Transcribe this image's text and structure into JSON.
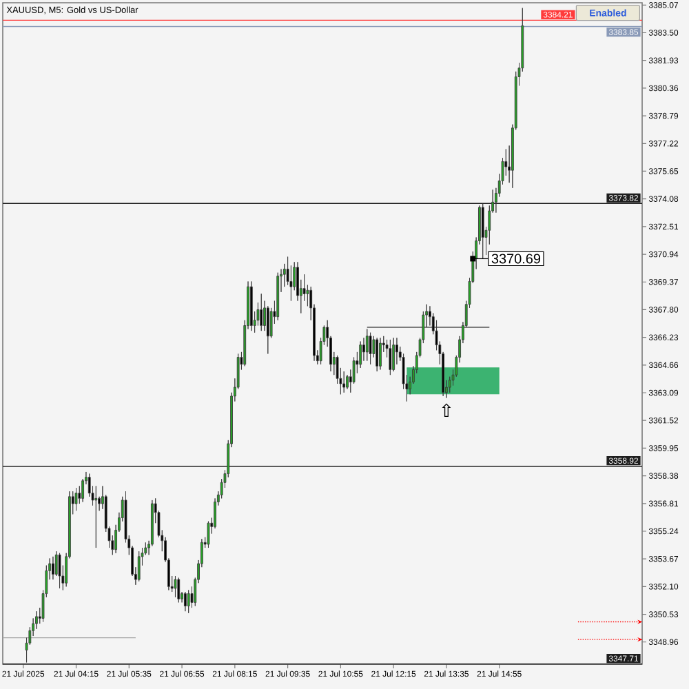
{
  "chart_data": {
    "type": "candlestick",
    "title": "XAUUSD, M5: Gold vs US-Dollar",
    "x": [
      "2025-07-21T03:00",
      "2025-07-21T03:05",
      "2025-07-21T03:10",
      "2025-07-21T03:15",
      "2025-07-21T03:20",
      "2025-07-21T03:25",
      "2025-07-21T03:30",
      "2025-07-21T03:35",
      "2025-07-21T03:40",
      "2025-07-21T03:45",
      "2025-07-21T03:50",
      "2025-07-21T03:55",
      "2025-07-21T04:00",
      "2025-07-21T04:05",
      "2025-07-21T04:10",
      "2025-07-21T04:15",
      "2025-07-21T04:20",
      "2025-07-21T04:25",
      "2025-07-21T04:30",
      "2025-07-21T04:35",
      "2025-07-21T04:40",
      "2025-07-21T04:45",
      "2025-07-21T04:50",
      "2025-07-21T04:55",
      "2025-07-21T05:00",
      "2025-07-21T05:05",
      "2025-07-21T05:10",
      "2025-07-21T05:15",
      "2025-07-21T05:20",
      "2025-07-21T05:25",
      "2025-07-21T05:30",
      "2025-07-21T05:35",
      "2025-07-21T05:40",
      "2025-07-21T05:45",
      "2025-07-21T05:50",
      "2025-07-21T05:55",
      "2025-07-21T06:00",
      "2025-07-21T06:05",
      "2025-07-21T06:10",
      "2025-07-21T06:15",
      "2025-07-21T06:20",
      "2025-07-21T06:25",
      "2025-07-21T06:30",
      "2025-07-21T06:35",
      "2025-07-21T06:40",
      "2025-07-21T06:45",
      "2025-07-21T06:50",
      "2025-07-21T06:55",
      "2025-07-21T07:00",
      "2025-07-21T07:05",
      "2025-07-21T07:10",
      "2025-07-21T07:15",
      "2025-07-21T07:20",
      "2025-07-21T07:25",
      "2025-07-21T07:30",
      "2025-07-21T07:35",
      "2025-07-21T07:40",
      "2025-07-21T07:45",
      "2025-07-21T07:50",
      "2025-07-21T07:55",
      "2025-07-21T08:00",
      "2025-07-21T08:05",
      "2025-07-21T08:10",
      "2025-07-21T08:15",
      "2025-07-21T08:20",
      "2025-07-21T08:25",
      "2025-07-21T08:30",
      "2025-07-21T08:35",
      "2025-07-21T08:40",
      "2025-07-21T08:45",
      "2025-07-21T08:50",
      "2025-07-21T08:55",
      "2025-07-21T09:00",
      "2025-07-21T09:05",
      "2025-07-21T09:10",
      "2025-07-21T09:15",
      "2025-07-21T09:20",
      "2025-07-21T09:25",
      "2025-07-21T09:30",
      "2025-07-21T09:35",
      "2025-07-21T09:40",
      "2025-07-21T09:45",
      "2025-07-21T09:50",
      "2025-07-21T09:55",
      "2025-07-21T10:00",
      "2025-07-21T10:05",
      "2025-07-21T10:10",
      "2025-07-21T10:15",
      "2025-07-21T10:20",
      "2025-07-21T10:25",
      "2025-07-21T10:30",
      "2025-07-21T10:35",
      "2025-07-21T10:40",
      "2025-07-21T10:45",
      "2025-07-21T10:50",
      "2025-07-21T10:55",
      "2025-07-21T11:00",
      "2025-07-21T11:05",
      "2025-07-21T11:10",
      "2025-07-21T11:15",
      "2025-07-21T11:20",
      "2025-07-21T11:25",
      "2025-07-21T11:30",
      "2025-07-21T11:35",
      "2025-07-21T11:40",
      "2025-07-21T11:45",
      "2025-07-21T11:50",
      "2025-07-21T11:55",
      "2025-07-21T12:00",
      "2025-07-21T12:05",
      "2025-07-21T12:10",
      "2025-07-21T12:15",
      "2025-07-21T12:20",
      "2025-07-21T12:25",
      "2025-07-21T12:30",
      "2025-07-21T12:35",
      "2025-07-21T12:40",
      "2025-07-21T12:45",
      "2025-07-21T12:50",
      "2025-07-21T12:55",
      "2025-07-21T13:00",
      "2025-07-21T13:05",
      "2025-07-21T13:10",
      "2025-07-21T13:15",
      "2025-07-21T13:20",
      "2025-07-21T13:25",
      "2025-07-21T13:30",
      "2025-07-21T13:35",
      "2025-07-21T13:40",
      "2025-07-21T13:45",
      "2025-07-21T13:50",
      "2025-07-21T13:55",
      "2025-07-21T14:00",
      "2025-07-21T14:05",
      "2025-07-21T14:10",
      "2025-07-21T14:15",
      "2025-07-21T14:20",
      "2025-07-21T14:25",
      "2025-07-21T14:30",
      "2025-07-21T14:35",
      "2025-07-21T14:40",
      "2025-07-21T14:45",
      "2025-07-21T14:50",
      "2025-07-21T14:55",
      "2025-07-21T15:00",
      "2025-07-21T15:05",
      "2025-07-21T15:10",
      "2025-07-21T15:15",
      "2025-07-21T15:20",
      "2025-07-21T15:25",
      "2025-07-21T15:30"
    ],
    "ohlc": [
      [
        3348.5,
        3349.2,
        3347.8,
        3348.9
      ],
      [
        3348.9,
        3349.8,
        3348.8,
        3349.6
      ],
      [
        3349.6,
        3350.3,
        3349.3,
        3350.0
      ],
      [
        3350.0,
        3350.7,
        3349.7,
        3350.4
      ],
      [
        3350.4,
        3350.9,
        3350.0,
        3350.3
      ],
      [
        3350.3,
        3351.9,
        3350.1,
        3351.7
      ],
      [
        3351.7,
        3353.3,
        3351.5,
        3353.0
      ],
      [
        3353.0,
        3353.7,
        3352.5,
        3353.4
      ],
      [
        3353.4,
        3353.8,
        3352.5,
        3352.8
      ],
      [
        3352.8,
        3354.1,
        3352.7,
        3353.9
      ],
      [
        3353.9,
        3354.0,
        3352.0,
        3352.7
      ],
      [
        3352.7,
        3353.3,
        3351.9,
        3352.3
      ],
      [
        3352.3,
        3354.0,
        3352.1,
        3353.8
      ],
      [
        3353.8,
        3357.5,
        3353.7,
        3357.2
      ],
      [
        3357.2,
        3357.5,
        3356.2,
        3356.8
      ],
      [
        3356.8,
        3357.7,
        3356.4,
        3357.4
      ],
      [
        3357.4,
        3357.8,
        3356.8,
        3357.1
      ],
      [
        3357.1,
        3358.2,
        3356.9,
        3358.1
      ],
      [
        3358.1,
        3358.6,
        3357.9,
        3358.3
      ],
      [
        3358.3,
        3358.5,
        3357.2,
        3357.4
      ],
      [
        3357.4,
        3357.8,
        3356.7,
        3357.0
      ],
      [
        3357.0,
        3357.8,
        3354.3,
        3357.1
      ],
      [
        3357.1,
        3357.2,
        3356.4,
        3356.8
      ],
      [
        3356.8,
        3357.8,
        3356.5,
        3357.2
      ],
      [
        3357.2,
        3357.3,
        3355.2,
        3355.4
      ],
      [
        3355.4,
        3355.5,
        3354.3,
        3354.7
      ],
      [
        3354.7,
        3355.0,
        3353.9,
        3354.2
      ],
      [
        3354.2,
        3355.6,
        3354.0,
        3355.3
      ],
      [
        3355.3,
        3356.3,
        3355.2,
        3356.0
      ],
      [
        3356.0,
        3357.2,
        3355.8,
        3357.0
      ],
      [
        3357.0,
        3357.5,
        3354.6,
        3354.8
      ],
      [
        3354.8,
        3355.0,
        3353.9,
        3354.3
      ],
      [
        3354.3,
        3354.4,
        3352.7,
        3352.8
      ],
      [
        3352.8,
        3353.2,
        3352.2,
        3352.5
      ],
      [
        3352.5,
        3354.1,
        3352.4,
        3353.8
      ],
      [
        3353.8,
        3354.3,
        3353.3,
        3354.0
      ],
      [
        3354.0,
        3354.6,
        3353.9,
        3354.3
      ],
      [
        3354.3,
        3354.7,
        3353.9,
        3354.5
      ],
      [
        3354.5,
        3357.0,
        3354.4,
        3356.8
      ],
      [
        3356.8,
        3357.1,
        3355.7,
        3356.3
      ],
      [
        3356.3,
        3356.4,
        3354.9,
        3355.0
      ],
      [
        3355.0,
        3355.3,
        3354.1,
        3354.7
      ],
      [
        3354.7,
        3354.9,
        3353.5,
        3353.6
      ],
      [
        3353.6,
        3353.7,
        3351.9,
        3352.1
      ],
      [
        3352.1,
        3352.7,
        3351.8,
        3352.0
      ],
      [
        3352.0,
        3352.7,
        3351.5,
        3352.5
      ],
      [
        3352.5,
        3352.6,
        3351.2,
        3351.4
      ],
      [
        3351.4,
        3351.8,
        3351.2,
        3351.7
      ],
      [
        3351.7,
        3351.8,
        3350.7,
        3351.0
      ],
      [
        3351.0,
        3351.9,
        3350.6,
        3351.7
      ],
      [
        3351.7,
        3352.1,
        3350.9,
        3351.2
      ],
      [
        3351.2,
        3352.6,
        3351.0,
        3352.5
      ],
      [
        3352.5,
        3353.6,
        3352.3,
        3353.4
      ],
      [
        3353.4,
        3354.8,
        3353.2,
        3354.6
      ],
      [
        3354.6,
        3354.9,
        3354.3,
        3354.5
      ],
      [
        3354.5,
        3355.8,
        3354.3,
        3355.7
      ],
      [
        3355.7,
        3356.0,
        3355.1,
        3355.5
      ],
      [
        3355.5,
        3357.1,
        3355.4,
        3356.9
      ],
      [
        3356.9,
        3357.5,
        3356.7,
        3357.3
      ],
      [
        3357.3,
        3358.2,
        3357.1,
        3358.0
      ],
      [
        3358.0,
        3358.7,
        3357.7,
        3358.5
      ],
      [
        3358.5,
        3360.4,
        3358.3,
        3360.2
      ],
      [
        3360.2,
        3363.1,
        3360.0,
        3362.9
      ],
      [
        3362.9,
        3363.9,
        3362.6,
        3363.4
      ],
      [
        3363.4,
        3365.3,
        3363.3,
        3365.1
      ],
      [
        3365.1,
        3365.4,
        3364.4,
        3364.7
      ],
      [
        3364.7,
        3367.2,
        3364.6,
        3366.9
      ],
      [
        3366.9,
        3369.4,
        3366.7,
        3369.1
      ],
      [
        3369.1,
        3369.4,
        3366.6,
        3366.9
      ],
      [
        3366.9,
        3367.7,
        3366.5,
        3367.2
      ],
      [
        3367.2,
        3368.2,
        3366.9,
        3367.8
      ],
      [
        3367.8,
        3368.7,
        3366.6,
        3366.9
      ],
      [
        3366.9,
        3368.3,
        3366.6,
        3367.9
      ],
      [
        3367.9,
        3368.0,
        3365.3,
        3366.3
      ],
      [
        3366.3,
        3367.9,
        3366.2,
        3367.7
      ],
      [
        3367.7,
        3368.3,
        3367.0,
        3367.4
      ],
      [
        3367.4,
        3369.9,
        3367.2,
        3369.7
      ],
      [
        3369.7,
        3370.1,
        3368.8,
        3369.8
      ],
      [
        3369.8,
        3370.4,
        3369.1,
        3370.1
      ],
      [
        3370.1,
        3370.8,
        3369.2,
        3369.4
      ],
      [
        3369.4,
        3370.3,
        3368.3,
        3369.1
      ],
      [
        3369.1,
        3370.5,
        3368.9,
        3370.2
      ],
      [
        3370.2,
        3370.5,
        3368.3,
        3368.6
      ],
      [
        3368.6,
        3369.5,
        3367.6,
        3369.0
      ],
      [
        3369.0,
        3369.8,
        3368.3,
        3368.7
      ],
      [
        3368.7,
        3369.2,
        3368.0,
        3368.9
      ],
      [
        3368.9,
        3369.1,
        3367.2,
        3367.9
      ],
      [
        3367.9,
        3368.1,
        3364.9,
        3365.2
      ],
      [
        3365.2,
        3365.5,
        3364.7,
        3364.9
      ],
      [
        3364.9,
        3366.2,
        3364.7,
        3366.0
      ],
      [
        3366.0,
        3366.9,
        3365.8,
        3366.8
      ],
      [
        3366.8,
        3367.2,
        3365.7,
        3366.2
      ],
      [
        3366.2,
        3366.3,
        3364.3,
        3364.7
      ],
      [
        3364.7,
        3365.4,
        3364.1,
        3365.1
      ],
      [
        3365.1,
        3365.2,
        3363.6,
        3363.9
      ],
      [
        3363.9,
        3364.5,
        3363.0,
        3363.6
      ],
      [
        3363.6,
        3364.3,
        3363.1,
        3363.4
      ],
      [
        3363.4,
        3364.1,
        3363.3,
        3364.0
      ],
      [
        3364.0,
        3364.4,
        3363.1,
        3363.7
      ],
      [
        3363.7,
        3365.1,
        3363.6,
        3364.9
      ],
      [
        3364.9,
        3365.4,
        3364.2,
        3364.7
      ],
      [
        3364.7,
        3366.0,
        3364.5,
        3365.8
      ],
      [
        3365.8,
        3366.2,
        3364.9,
        3365.4
      ],
      [
        3365.4,
        3366.7,
        3364.9,
        3366.3
      ],
      [
        3366.3,
        3366.5,
        3364.7,
        3365.3
      ],
      [
        3365.3,
        3366.3,
        3365.1,
        3366.1
      ],
      [
        3366.1,
        3366.2,
        3364.3,
        3364.6
      ],
      [
        3364.6,
        3366.2,
        3364.4,
        3365.9
      ],
      [
        3365.9,
        3366.3,
        3365.4,
        3365.8
      ],
      [
        3365.8,
        3366.1,
        3365.1,
        3365.6
      ],
      [
        3365.6,
        3366.1,
        3364.1,
        3364.4
      ],
      [
        3364.4,
        3366.2,
        3364.3,
        3365.8
      ],
      [
        3365.8,
        3366.2,
        3364.7,
        3365.4
      ],
      [
        3365.4,
        3365.7,
        3364.9,
        3365.1
      ],
      [
        3365.1,
        3365.3,
        3363.3,
        3363.6
      ],
      [
        3363.6,
        3364.1,
        3362.6,
        3363.3
      ],
      [
        3363.3,
        3364.0,
        3363.0,
        3363.7
      ],
      [
        3363.7,
        3364.6,
        3363.6,
        3364.4
      ],
      [
        3364.4,
        3365.4,
        3364.2,
        3365.2
      ],
      [
        3365.2,
        3366.2,
        3365.1,
        3366.1
      ],
      [
        3366.1,
        3367.7,
        3365.9,
        3367.5
      ],
      [
        3367.5,
        3368.1,
        3366.8,
        3367.7
      ],
      [
        3367.7,
        3368.0,
        3366.9,
        3367.4
      ],
      [
        3367.4,
        3367.6,
        3366.4,
        3366.6
      ],
      [
        3366.6,
        3367.2,
        3365.5,
        3365.8
      ],
      [
        3365.8,
        3366.0,
        3364.7,
        3365.3
      ],
      [
        3365.3,
        3365.4,
        3362.9,
        3363.1
      ],
      [
        3363.1,
        3363.8,
        3362.8,
        3363.4
      ],
      [
        3363.4,
        3364.0,
        3363.1,
        3363.8
      ],
      [
        3363.8,
        3364.4,
        3363.5,
        3364.1
      ],
      [
        3364.1,
        3365.2,
        3364.0,
        3365.1
      ],
      [
        3365.1,
        3366.3,
        3364.8,
        3366.1
      ],
      [
        3366.1,
        3367.1,
        3365.9,
        3366.9
      ],
      [
        3366.9,
        3368.3,
        3366.8,
        3368.1
      ],
      [
        3368.1,
        3369.6,
        3367.9,
        3369.4
      ],
      [
        3369.4,
        3371.1,
        3369.3,
        3370.7
      ],
      [
        3370.7,
        3371.9,
        3370.1,
        3371.7
      ],
      [
        3371.7,
        3373.7,
        3371.5,
        3373.6
      ],
      [
        3373.6,
        3373.8,
        3370.7,
        3371.9
      ],
      [
        3371.9,
        3372.5,
        3370.9,
        3372.3
      ],
      [
        3372.3,
        3373.7,
        3371.5,
        3373.4
      ],
      [
        3373.4,
        3374.6,
        3373.3,
        3373.9
      ],
      [
        3373.9,
        3374.7,
        3373.3,
        3374.4
      ],
      [
        3374.4,
        3375.5,
        3374.2,
        3375.1
      ],
      [
        3375.1,
        3376.4,
        3374.9,
        3376.2
      ],
      [
        3376.2,
        3376.9,
        3375.4,
        3375.9
      ],
      [
        3375.9,
        3377.1,
        3375.0,
        3375.7
      ],
      [
        3375.7,
        3378.3,
        3374.7,
        3378.1
      ],
      [
        3378.1,
        3381.3,
        3378.0,
        3381.0
      ],
      [
        3381.0,
        3381.8,
        3380.5,
        3381.5
      ],
      [
        3381.5,
        3384.9,
        3381.3,
        3383.9
      ]
    ],
    "colors": [
      "#27a327",
      "#27a327",
      "#27a327",
      "#27a327",
      "#000000",
      "#27a327",
      "#27a327",
      "#27a327",
      "#000000",
      "#27a327",
      "#000000",
      "#000000",
      "#27a327",
      "#27a327",
      "#000000",
      "#27a327",
      "#000000",
      "#27a327",
      "#27a327",
      "#000000",
      "#000000",
      "#27a327",
      "#000000",
      "#27a327",
      "#000000",
      "#000000",
      "#000000",
      "#27a327",
      "#27a327",
      "#27a327",
      "#000000",
      "#000000",
      "#000000",
      "#000000",
      "#27a327",
      "#27a327",
      "#27a327",
      "#27a327",
      "#27a327",
      "#000000",
      "#000000",
      "#000000",
      "#000000",
      "#000000",
      "#000000",
      "#27a327",
      "#000000",
      "#27a327",
      "#000000",
      "#27a327",
      "#000000",
      "#27a327",
      "#27a327",
      "#27a327",
      "#000000",
      "#27a327",
      "#000000",
      "#27a327",
      "#27a327",
      "#27a327",
      "#27a327",
      "#27a327",
      "#27a327",
      "#27a327",
      "#27a327",
      "#000000",
      "#27a327",
      "#27a327",
      "#000000",
      "#27a327",
      "#27a327",
      "#000000",
      "#27a327",
      "#000000",
      "#27a327",
      "#000000",
      "#27a327",
      "#27a327",
      "#27a327",
      "#000000",
      "#000000",
      "#27a327",
      "#000000",
      "#27a327",
      "#000000",
      "#27a327",
      "#000000",
      "#000000",
      "#000000",
      "#27a327",
      "#27a327",
      "#000000",
      "#000000",
      "#27a327",
      "#000000",
      "#000000",
      "#000000",
      "#27a327",
      "#000000",
      "#27a327",
      "#000000",
      "#27a327",
      "#000000",
      "#27a327",
      "#000000",
      "#27a327",
      "#000000",
      "#27a327",
      "#000000",
      "#000000",
      "#000000",
      "#27a327",
      "#000000",
      "#000000",
      "#000000",
      "#000000",
      "#27a327",
      "#27a327",
      "#27a327",
      "#27a327",
      "#27a327",
      "#27a327",
      "#000000",
      "#000000",
      "#000000",
      "#000000",
      "#000000",
      "#27a327",
      "#27a327",
      "#27a327",
      "#27a327",
      "#27a327",
      "#27a327",
      "#27a327",
      "#27a327",
      "#27a327",
      "#27a327",
      "#27a327",
      "#000000",
      "#27a327",
      "#27a327",
      "#27a327",
      "#27a327",
      "#27a327",
      "#27a327",
      "#000000",
      "#000000",
      "#27a327",
      "#27a327",
      "#27a327",
      "#27a327"
    ],
    "xlim": [
      "2025-07-21T02:24",
      "2025-07-21T18:31"
    ],
    "xticks": [
      {
        "value": "2025-07-21T02:55",
        "label": "21 Jul 2025"
      },
      {
        "value": "2025-07-21T04:15",
        "label": "21 Jul 04:15"
      },
      {
        "value": "2025-07-21T05:35",
        "label": "21 Jul 05:35"
      },
      {
        "value": "2025-07-21T06:55",
        "label": "21 Jul 06:55"
      },
      {
        "value": "2025-07-21T08:15",
        "label": "21 Jul 08:15"
      },
      {
        "value": "2025-07-21T09:35",
        "label": "21 Jul 09:35"
      },
      {
        "value": "2025-07-21T10:55",
        "label": "21 Jul 10:55"
      },
      {
        "value": "2025-07-21T12:15",
        "label": "21 Jul 12:15"
      },
      {
        "value": "2025-07-21T13:35",
        "label": "21 Jul 13:35"
      },
      {
        "value": "2025-07-21T14:55",
        "label": "21 Jul 14:55"
      }
    ],
    "ylim": [
      3347.7,
      3385.2
    ],
    "yticks": [
      3348.96,
      3350.53,
      {
        "value": 3352.1,
        "label": "3352.10"
      },
      3353.67,
      3355.24,
      3356.81,
      3358.38,
      3359.95,
      3361.52,
      3363.09,
      3364.66,
      3366.23,
      {
        "value": 3367.8,
        "label": "3367.80"
      },
      3369.37,
      3370.94,
      3372.51,
      3374.08,
      3375.65,
      3377.22,
      3378.79,
      3380.36,
      3381.93,
      {
        "value": 3383.5,
        "label": "3383.50"
      },
      3385.07
    ],
    "series": [
      {
        "type": "line",
        "x": [
          "2025-07-21T12:35",
          "2025-07-21T14:55"
        ],
        "values": [
          3364.5,
          3364.5
        ],
        "lower": [
          3363.0,
          3363.0
        ],
        "upper": [
          3364.5,
          3364.5
        ],
        "color": "#3cb371"
      },
      {
        "type": "line",
        "x": [
          "2025-07-21T02:24",
          "2025-07-21T05:45"
        ],
        "values": [
          3349.2,
          3349.2
        ],
        "color": "#a6a6a6"
      },
      {
        "type": "line",
        "x": [
          "2025-07-21T11:35",
          "2025-07-21T14:40"
        ],
        "values": [
          3366.8,
          3366.8
        ],
        "color": "#555555"
      },
      {
        "type": "line",
        "x": [
          "2025-07-21T16:54",
          "2025-07-21T18:24"
        ],
        "values": [
          3350.1,
          3350.1
        ],
        "color": "#ff0000",
        "line_style": "dotted"
      },
      {
        "type": "line",
        "x": [
          "2025-07-21T16:54",
          "2025-07-21T18:24"
        ],
        "values": [
          3349.1,
          3349.1
        ],
        "color": "#ff0000",
        "line_style": "dotted"
      }
    ],
    "ref_lines": [
      {
        "axis": "y",
        "value": 3384.21,
        "label": "3384.21",
        "color": "#ff3b3b"
      },
      {
        "axis": "y",
        "value": 3383.85,
        "label": "3383.85",
        "color": "#8a9ab8"
      },
      {
        "axis": "y",
        "value": 3373.82,
        "label": "3373.82",
        "color": "#1e1e1e"
      },
      {
        "axis": "y",
        "value": 3358.92,
        "label": "3358.92",
        "color": "#1e1e1e"
      },
      {
        "axis": "y",
        "value": 3347.71,
        "label": "3347.71",
        "color": "#1e1e1e"
      }
    ],
    "annotations": [
      "Enabled",
      {
        "text": "3370.69",
        "x": "2025-07-21T14:15",
        "y": 3370.69
      },
      {
        "text": "⇧",
        "x": "2025-07-21T13:35",
        "y": 3362.5
      }
    ]
  }
}
